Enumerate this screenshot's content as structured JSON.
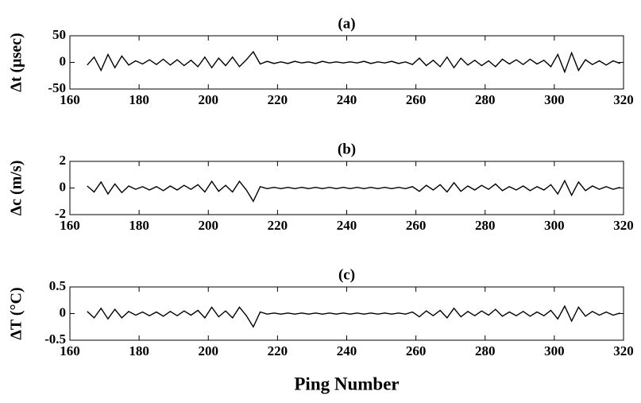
{
  "chart_data": [
    {
      "type": "line",
      "title": "(a)",
      "y_label": "Δt (μsec)",
      "x": [
        165,
        167,
        169,
        171,
        173,
        175,
        177,
        179,
        181,
        183,
        185,
        187,
        189,
        191,
        193,
        195,
        197,
        199,
        201,
        203,
        205,
        207,
        209,
        211,
        213,
        215,
        217,
        219,
        221,
        223,
        225,
        227,
        229,
        231,
        233,
        235,
        237,
        239,
        241,
        243,
        245,
        247,
        249,
        251,
        253,
        255,
        257,
        259,
        261,
        263,
        265,
        267,
        269,
        271,
        273,
        275,
        277,
        279,
        281,
        283,
        285,
        287,
        289,
        291,
        293,
        295,
        297,
        299,
        301,
        303,
        305,
        307,
        309,
        311,
        313,
        315,
        317,
        319
      ],
      "values": [
        -5,
        10,
        -15,
        15,
        -10,
        12,
        -5,
        3,
        -3,
        5,
        -4,
        6,
        -5,
        5,
        -6,
        4,
        -8,
        10,
        -10,
        8,
        -6,
        10,
        -8,
        5,
        20,
        -3,
        2,
        -2,
        1,
        -2,
        2,
        -1,
        1,
        -2,
        2,
        -1,
        1,
        -1,
        1,
        -1,
        2,
        -2,
        1,
        -1,
        2,
        -2,
        1,
        -4,
        8,
        -6,
        4,
        -8,
        10,
        -10,
        8,
        -5,
        4,
        -6,
        3,
        -8,
        6,
        -3,
        5,
        -4,
        6,
        -3,
        4,
        -8,
        15,
        -18,
        18,
        -15,
        5,
        -4,
        3,
        -5,
        3,
        -2
      ],
      "color": "#000000",
      "xlim": [
        160,
        320
      ],
      "xticks": [
        160,
        180,
        200,
        220,
        240,
        260,
        280,
        300,
        320
      ],
      "ylim": [
        -50,
        50
      ],
      "yticks": [
        -50,
        0,
        50
      ]
    },
    {
      "type": "line",
      "title": "(b)",
      "y_label": "Δc (m/s)",
      "x": [
        165,
        167,
        169,
        171,
        173,
        175,
        177,
        179,
        181,
        183,
        185,
        187,
        189,
        191,
        193,
        195,
        197,
        199,
        201,
        203,
        205,
        207,
        209,
        211,
        213,
        215,
        217,
        219,
        221,
        223,
        225,
        227,
        229,
        231,
        233,
        235,
        237,
        239,
        241,
        243,
        245,
        247,
        249,
        251,
        253,
        255,
        257,
        259,
        261,
        263,
        265,
        267,
        269,
        271,
        273,
        275,
        277,
        279,
        281,
        283,
        285,
        287,
        289,
        291,
        293,
        295,
        297,
        299,
        301,
        303,
        305,
        307,
        309,
        311,
        313,
        315,
        317,
        319
      ],
      "values": [
        0.15,
        -0.3,
        0.45,
        -0.45,
        0.3,
        -0.35,
        0.15,
        -0.1,
        0.1,
        -0.15,
        0.1,
        -0.2,
        0.15,
        -0.15,
        0.2,
        -0.1,
        0.25,
        -0.3,
        0.5,
        -0.25,
        0.2,
        -0.3,
        0.5,
        -0.15,
        -1.0,
        0.1,
        -0.05,
        0.05,
        -0.05,
        0.05,
        -0.05,
        0.05,
        -0.05,
        0.05,
        -0.05,
        0.05,
        -0.05,
        0.05,
        -0.05,
        0.05,
        -0.05,
        0.05,
        -0.05,
        0.05,
        -0.05,
        0.05,
        -0.05,
        0.1,
        -0.25,
        0.2,
        -0.15,
        0.25,
        -0.3,
        0.4,
        -0.25,
        0.15,
        -0.15,
        0.2,
        -0.1,
        0.3,
        -0.2,
        0.1,
        -0.15,
        0.15,
        -0.2,
        0.1,
        -0.15,
        0.25,
        -0.45,
        0.55,
        -0.55,
        0.45,
        -0.2,
        0.15,
        -0.1,
        0.1,
        -0.1,
        0.05
      ],
      "color": "#000000",
      "xlim": [
        160,
        320
      ],
      "xticks": [
        160,
        180,
        200,
        220,
        240,
        260,
        280,
        300,
        320
      ],
      "ylim": [
        -2,
        2
      ],
      "yticks": [
        -2,
        0,
        2
      ]
    },
    {
      "type": "line",
      "title": "(c)",
      "y_label": "ΔT (°C)",
      "x_label": "Ping Number",
      "x": [
        165,
        167,
        169,
        171,
        173,
        175,
        177,
        179,
        181,
        183,
        185,
        187,
        189,
        191,
        193,
        195,
        197,
        199,
        201,
        203,
        205,
        207,
        209,
        211,
        213,
        215,
        217,
        219,
        221,
        223,
        225,
        227,
        229,
        231,
        233,
        235,
        237,
        239,
        241,
        243,
        245,
        247,
        249,
        251,
        253,
        255,
        257,
        259,
        261,
        263,
        265,
        267,
        269,
        271,
        273,
        275,
        277,
        279,
        281,
        283,
        285,
        287,
        289,
        291,
        293,
        295,
        297,
        299,
        301,
        303,
        305,
        307,
        309,
        311,
        313,
        315,
        317,
        319
      ],
      "values": [
        0.04,
        -0.08,
        0.1,
        -0.1,
        0.08,
        -0.08,
        0.04,
        -0.03,
        0.03,
        -0.04,
        0.03,
        -0.05,
        0.04,
        -0.04,
        0.05,
        -0.03,
        0.06,
        -0.08,
        0.12,
        -0.06,
        0.05,
        -0.08,
        0.12,
        -0.04,
        -0.25,
        0.03,
        -0.01,
        0.01,
        -0.01,
        0.01,
        -0.01,
        0.01,
        -0.01,
        0.01,
        -0.01,
        0.01,
        -0.01,
        0.01,
        -0.01,
        0.01,
        -0.01,
        0.01,
        -0.01,
        0.01,
        -0.01,
        0.01,
        -0.01,
        0.03,
        -0.06,
        0.05,
        -0.04,
        0.06,
        -0.08,
        0.1,
        -0.06,
        0.04,
        -0.04,
        0.05,
        -0.03,
        0.08,
        -0.05,
        0.03,
        -0.04,
        0.04,
        -0.05,
        0.03,
        -0.04,
        0.06,
        -0.1,
        0.14,
        -0.14,
        0.12,
        -0.05,
        0.04,
        -0.03,
        0.03,
        -0.03,
        0.01
      ],
      "color": "#000000",
      "xlim": [
        160,
        320
      ],
      "xticks": [
        160,
        180,
        200,
        220,
        240,
        260,
        280,
        300,
        320
      ],
      "ylim": [
        -0.5,
        0.5
      ],
      "yticks": [
        -0.5,
        0,
        0.5
      ]
    }
  ]
}
